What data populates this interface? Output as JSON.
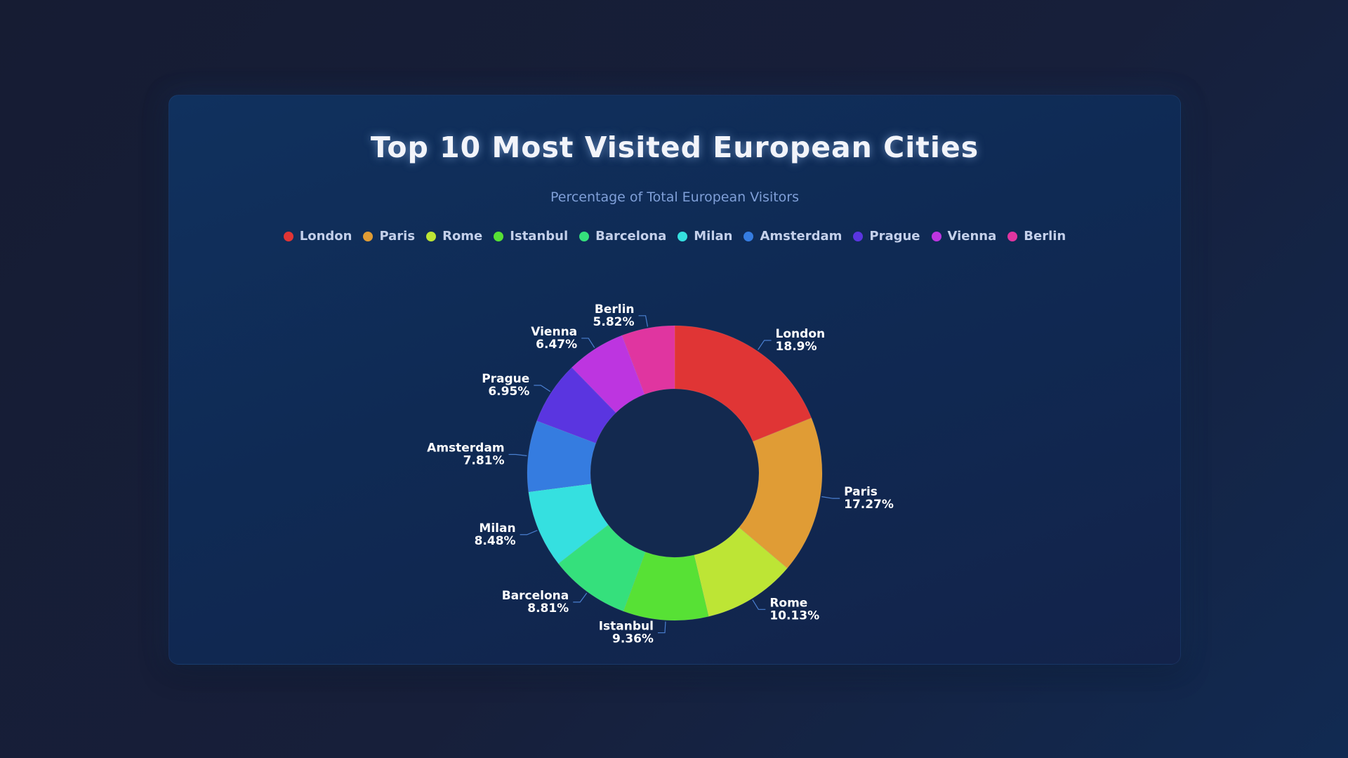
{
  "title": "Top 10 Most Visited European Cities",
  "subtitle": "Percentage of Total European Visitors",
  "chart_data": {
    "type": "pie",
    "variant": "donut",
    "title": "Top 10 Most Visited European Cities",
    "subtitle": "Percentage of Total European Visitors",
    "legend_position": "top",
    "categories": [
      "London",
      "Paris",
      "Rome",
      "Istanbul",
      "Barcelona",
      "Milan",
      "Amsterdam",
      "Prague",
      "Vienna",
      "Berlin"
    ],
    "values": [
      18.9,
      17.27,
      10.13,
      9.36,
      8.81,
      8.48,
      7.81,
      6.95,
      6.47,
      5.82
    ],
    "value_labels": [
      "18.9%",
      "17.27%",
      "10.13%",
      "9.36%",
      "8.81%",
      "8.48%",
      "7.81%",
      "6.95%",
      "6.47%",
      "5.82%"
    ],
    "colors": [
      "#e03535",
      "#e09c35",
      "#bde535",
      "#57e135",
      "#35e07c",
      "#35e0e0",
      "#357ce0",
      "#5a35e0",
      "#bd35e0",
      "#e035a0"
    ]
  }
}
